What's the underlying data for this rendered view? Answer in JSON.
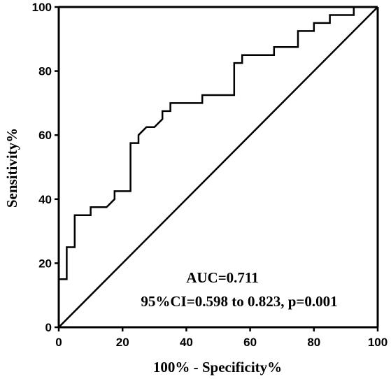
{
  "chart_data": {
    "type": "line",
    "title": "",
    "xlabel": "100% - Specificity%",
    "ylabel": "Sensitivity%",
    "xlim": [
      0,
      100
    ],
    "ylim": [
      0,
      100
    ],
    "x_ticks": [
      "0",
      "20",
      "40",
      "60",
      "80",
      "100"
    ],
    "y_ticks": [
      "0",
      "20",
      "40",
      "60",
      "80",
      "100"
    ],
    "grid": false,
    "series": [
      {
        "name": "",
        "type": "step",
        "points": [
          [
            0,
            15
          ],
          [
            2.5,
            15
          ],
          [
            2.5,
            17.5
          ],
          [
            2.5,
            25
          ],
          [
            5,
            25
          ],
          [
            5,
            35
          ],
          [
            10,
            35
          ],
          [
            10,
            37.5
          ],
          [
            15,
            37.5
          ],
          [
            17.5,
            40
          ],
          [
            17.5,
            42.5
          ],
          [
            22.5,
            42.5
          ],
          [
            22.5,
            57.5
          ],
          [
            25,
            57.5
          ],
          [
            25,
            60
          ],
          [
            27.5,
            62.5
          ],
          [
            30,
            62.5
          ],
          [
            32.5,
            65
          ],
          [
            32.5,
            67.5
          ],
          [
            35,
            67.5
          ],
          [
            35,
            70
          ],
          [
            45,
            70
          ],
          [
            45,
            72.5
          ],
          [
            55,
            72.5
          ],
          [
            55,
            82.5
          ],
          [
            57.5,
            82.5
          ],
          [
            57.5,
            85
          ],
          [
            67.5,
            85
          ],
          [
            67.5,
            87.5
          ],
          [
            75,
            87.5
          ],
          [
            75,
            92.5
          ],
          [
            80,
            92.5
          ],
          [
            80,
            95
          ],
          [
            85,
            95
          ],
          [
            85,
            97.5
          ],
          [
            92.5,
            97.5
          ],
          [
            92.5,
            100
          ],
          [
            100,
            100
          ]
        ]
      },
      {
        "name": "",
        "type": "reference",
        "points": [
          [
            0,
            0
          ],
          [
            100,
            100
          ]
        ]
      }
    ],
    "annotations": {
      "auc": "AUC=0.711",
      "ci": "95%CI=0.598 to 0.823, p=0.001"
    }
  }
}
